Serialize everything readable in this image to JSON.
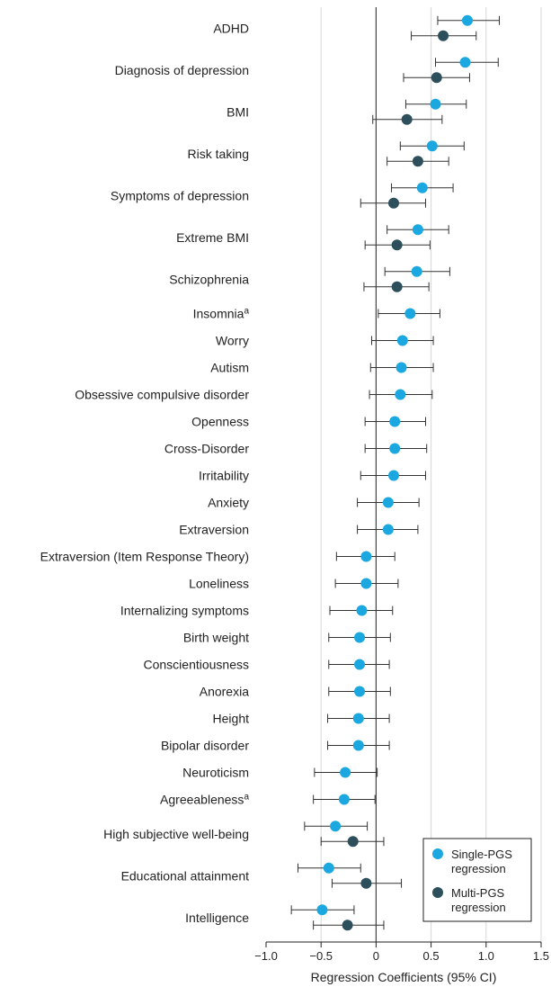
{
  "chart_data": {
    "type": "forest",
    "xlabel": "Regression Coefficients (95% CI)",
    "xlim": [
      -1.0,
      1.5
    ],
    "xticks": [
      -1.0,
      -0.5,
      0,
      0.5,
      1.0,
      1.5
    ],
    "xtick_labels": [
      "−1.0",
      "−0.5",
      "0",
      "0.5",
      "1.0",
      "1.5"
    ],
    "grid": "vertical",
    "reference_line": 0,
    "colors": {
      "single": "#1ba8e0",
      "multi": "#2d4f5c",
      "grid": "#d7d7d7",
      "axis": "#555555"
    },
    "series": [
      {
        "key": "single",
        "name": "Single-PGS regression"
      },
      {
        "key": "multi",
        "name": "Multi-PGS regression"
      }
    ],
    "legend": {
      "position": "bottom-right",
      "entries": [
        [
          "Single-PGS",
          "regression"
        ],
        [
          "Multi-PGS",
          "regression"
        ]
      ]
    },
    "rows": [
      {
        "label": "ADHD",
        "single": [
          0.83,
          0.56,
          1.12
        ],
        "multi": [
          0.61,
          0.32,
          0.91
        ]
      },
      {
        "label": "Diagnosis of depression",
        "single": [
          0.81,
          0.54,
          1.11
        ],
        "multi": [
          0.55,
          0.25,
          0.85
        ]
      },
      {
        "label": "BMI",
        "single": [
          0.54,
          0.27,
          0.82
        ],
        "multi": [
          0.28,
          -0.03,
          0.6
        ]
      },
      {
        "label": "Risk taking",
        "single": [
          0.51,
          0.22,
          0.8
        ],
        "multi": [
          0.38,
          0.1,
          0.66
        ]
      },
      {
        "label": "Symptoms of depression",
        "single": [
          0.42,
          0.14,
          0.7
        ],
        "multi": [
          0.16,
          -0.14,
          0.45
        ]
      },
      {
        "label": "Extreme BMI",
        "single": [
          0.38,
          0.1,
          0.66
        ],
        "multi": [
          0.19,
          -0.1,
          0.49
        ]
      },
      {
        "label": "Schizophrenia",
        "single": [
          0.37,
          0.08,
          0.67
        ],
        "multi": [
          0.19,
          -0.11,
          0.48
        ]
      },
      {
        "label": "Insomnia",
        "sup": "a",
        "single": [
          0.31,
          0.02,
          0.58
        ]
      },
      {
        "label": "Worry",
        "single": [
          0.24,
          -0.04,
          0.52
        ]
      },
      {
        "label": "Autism",
        "single": [
          0.23,
          -0.05,
          0.52
        ]
      },
      {
        "label": "Obsessive compulsive disorder",
        "single": [
          0.22,
          -0.06,
          0.51
        ]
      },
      {
        "label": "Openness",
        "single": [
          0.17,
          -0.1,
          0.45
        ]
      },
      {
        "label": "Cross-Disorder",
        "single": [
          0.17,
          -0.1,
          0.46
        ]
      },
      {
        "label": "Irritability",
        "single": [
          0.16,
          -0.14,
          0.45
        ]
      },
      {
        "label": "Anxiety",
        "single": [
          0.11,
          -0.17,
          0.39
        ]
      },
      {
        "label": "Extraversion",
        "single": [
          0.11,
          -0.17,
          0.38
        ]
      },
      {
        "label": "Extraversion (Item Response Theory)",
        "single": [
          -0.09,
          -0.36,
          0.17
        ]
      },
      {
        "label": "Loneliness",
        "single": [
          -0.09,
          -0.37,
          0.2
        ]
      },
      {
        "label": "Internalizing symptoms",
        "single": [
          -0.13,
          -0.42,
          0.15
        ]
      },
      {
        "label": "Birth weight",
        "single": [
          -0.15,
          -0.43,
          0.13
        ]
      },
      {
        "label": "Conscientiousness",
        "single": [
          -0.15,
          -0.43,
          0.12
        ]
      },
      {
        "label": "Anorexia",
        "single": [
          -0.15,
          -0.43,
          0.13
        ]
      },
      {
        "label": "Height",
        "single": [
          -0.16,
          -0.44,
          0.12
        ]
      },
      {
        "label": "Bipolar disorder",
        "single": [
          -0.16,
          -0.44,
          0.12
        ]
      },
      {
        "label": "Neuroticism",
        "single": [
          -0.28,
          -0.56,
          0.01
        ]
      },
      {
        "label": "Agreeableness",
        "sup": "a",
        "single": [
          -0.29,
          -0.57,
          -0.01
        ]
      },
      {
        "label": "High subjective well-being",
        "single": [
          -0.37,
          -0.65,
          -0.08
        ],
        "multi": [
          -0.21,
          -0.5,
          0.07
        ]
      },
      {
        "label": "Educational attainment",
        "single": [
          -0.43,
          -0.71,
          -0.14
        ],
        "multi": [
          -0.09,
          -0.4,
          0.23
        ]
      },
      {
        "label": "Intelligence",
        "single": [
          -0.49,
          -0.77,
          -0.2
        ],
        "multi": [
          -0.26,
          -0.57,
          0.07
        ]
      }
    ]
  }
}
